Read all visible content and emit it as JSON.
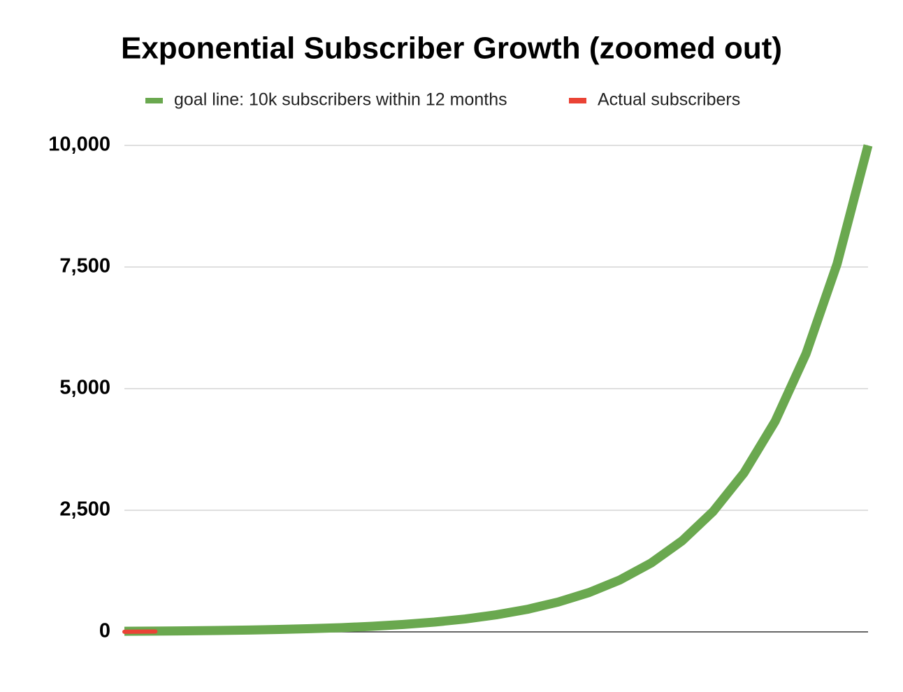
{
  "chart_data": {
    "type": "line",
    "title": "Exponential Subscriber Growth (zoomed out)",
    "categories": [
      null,
      null,
      null,
      null,
      null,
      null,
      null,
      null,
      null,
      null,
      null,
      null,
      null,
      null,
      null,
      null,
      null,
      null,
      null,
      null,
      null,
      null,
      null,
      null,
      null
    ],
    "series": [
      {
        "name": "goal line: 10k subscribers within 12 months",
        "color": "#6aa84f",
        "values": [
          12,
          16,
          22,
          28,
          38,
          50,
          66,
          87,
          115,
          152,
          201,
          265,
          351,
          463,
          613,
          810,
          1071,
          1416,
          1872,
          2475,
          3272,
          4326,
          5720,
          7563,
          10000
        ]
      },
      {
        "name": "Actual subscribers",
        "color": "#ea4335",
        "values": [
          2,
          8,
          null,
          null,
          null,
          null,
          null,
          null,
          null,
          null,
          null,
          null,
          null,
          null,
          null,
          null,
          null,
          null,
          null,
          null,
          null,
          null,
          null,
          null,
          null
        ]
      }
    ],
    "ylim": [
      0,
      10000
    ],
    "yticks": [
      0,
      {
        "value": 2500,
        "label": "2,500"
      },
      {
        "value": 5000,
        "label": "5,000"
      },
      {
        "value": 7500,
        "label": "7,500"
      },
      {
        "value": 10000,
        "label": "10,000"
      }
    ],
    "grid": true,
    "legend": "top"
  }
}
